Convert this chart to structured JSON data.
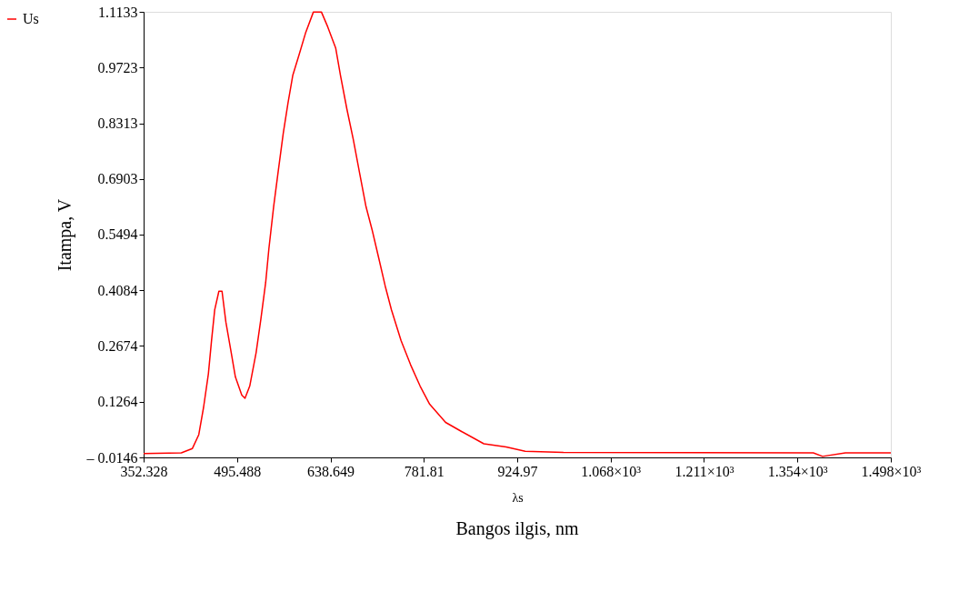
{
  "chart_data": {
    "type": "line",
    "xlabel": "λs",
    "ylabel": "Itampa, V",
    "annotations": [
      "Bangos ilgis, nm"
    ],
    "x": [
      352.328,
      410.1,
      427.1,
      436.9,
      444.2,
      451.6,
      456.4,
      461.3,
      467.7,
      472.5,
      478.4,
      485.7,
      493.0,
      502.8,
      507.7,
      515.0,
      524.8,
      532.1,
      539.4,
      544.3,
      551.6,
      558.9,
      566.3,
      573.6,
      580.9,
      590.7,
      600.4,
      612.6,
      624.8,
      634.6,
      646.8,
      654.1,
      663.9,
      673.7,
      683.4,
      693.2,
      702.9,
      712.7,
      722.5,
      732.2,
      746.9,
      761.5,
      776.1,
      790.8,
      815.2,
      839.6,
      873.8,
      907.9,
      937.2,
      995.8,
      1378.8,
      1393,
      1428,
      1497.612
    ],
    "series": [
      {
        "name": "Us",
        "color": "#ff0000",
        "values": [
          -0.005,
          -0.003,
          0.008,
          0.043,
          0.112,
          0.197,
          0.281,
          0.359,
          0.406,
          0.406,
          0.328,
          0.259,
          0.189,
          0.143,
          0.135,
          0.166,
          0.251,
          0.336,
          0.428,
          0.513,
          0.62,
          0.713,
          0.805,
          0.882,
          0.952,
          1.005,
          1.059,
          1.113,
          1.113,
          1.075,
          1.021,
          0.952,
          0.867,
          0.79,
          0.705,
          0.62,
          0.559,
          0.49,
          0.42,
          0.359,
          0.281,
          0.22,
          0.166,
          0.12,
          0.074,
          0.051,
          0.02,
          0.012,
          0.001,
          -0.002,
          -0.003,
          -0.012,
          -0.003,
          -0.003
        ]
      }
    ],
    "xlim": [
      352.328,
      1497.612
    ],
    "xticks": [
      352.328,
      495.488,
      638.649,
      781.81,
      924.97,
      {
        "value": 1068.13,
        "label": "1.068×10³"
      },
      {
        "value": 1211.291,
        "label": "1.211×10³"
      },
      {
        "value": 1354.452,
        "label": "1.354×10³"
      },
      {
        "value": 1497.612,
        "label": "1.498×10³"
      }
    ],
    "ylim": [
      -0.0146,
      1.1133
    ],
    "yticks": [
      {
        "value": -0.0146,
        "label": "– 0.0146"
      },
      0.1264,
      0.2674,
      0.4084,
      0.5494,
      0.6903,
      0.8313,
      0.9723,
      1.1133
    ],
    "grid": false,
    "legend": "left",
    "line_style": "solid",
    "marker": "none"
  }
}
